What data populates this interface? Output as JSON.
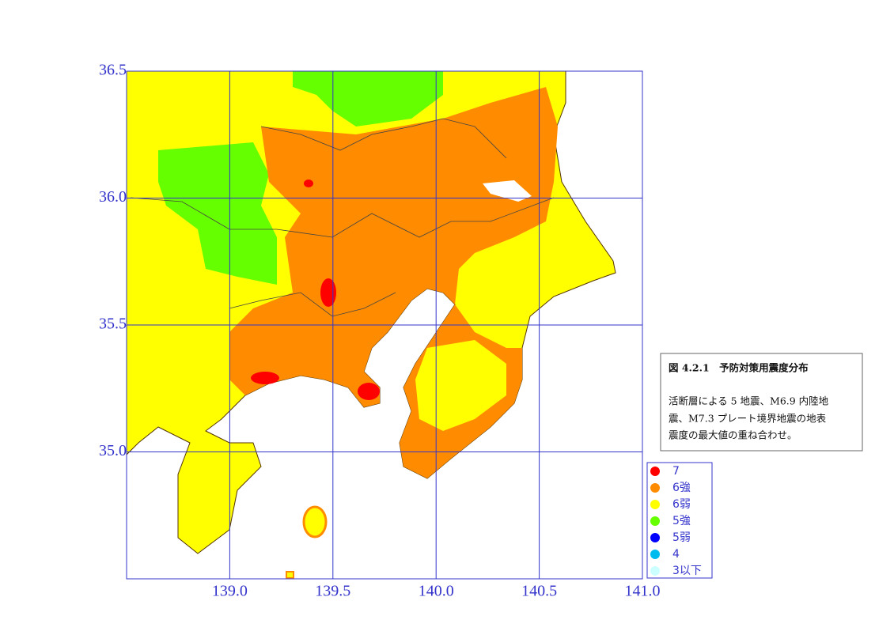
{
  "map": {
    "xlim": [
      138.5,
      141.0
    ],
    "ylim": [
      34.5,
      36.5
    ],
    "xticks": [
      {
        "value": 139,
        "label": "139.0"
      },
      139.5,
      {
        "value": 140,
        "label": "140.0"
      },
      140.5,
      {
        "value": 141,
        "label": "141.0"
      }
    ],
    "yticks": [
      36.5,
      {
        "value": 36,
        "label": "36.0"
      },
      35.5,
      {
        "value": 35,
        "label": "35.0"
      }
    ],
    "legend": [
      {
        "label": "7",
        "color": "#ff0000"
      },
      {
        "label": "6強",
        "color": "#ff8c00"
      },
      {
        "label": "6弱",
        "color": "#ffff00"
      },
      {
        "label": "5強",
        "color": "#66ff00"
      },
      {
        "label": "5弱",
        "color": "#0000ff"
      },
      {
        "label": "4",
        "color": "#00bbee"
      },
      {
        "label": "3以下",
        "color": "#ccffff"
      }
    ]
  },
  "caption": {
    "title": "図 4.2.1　予防対策用震度分布",
    "lines": [
      "活断層による 5 地震、M6.9 内陸地",
      "震、M7.3 プレート境界地震の地表",
      "震度の最大値の重ね合わせ。"
    ]
  }
}
